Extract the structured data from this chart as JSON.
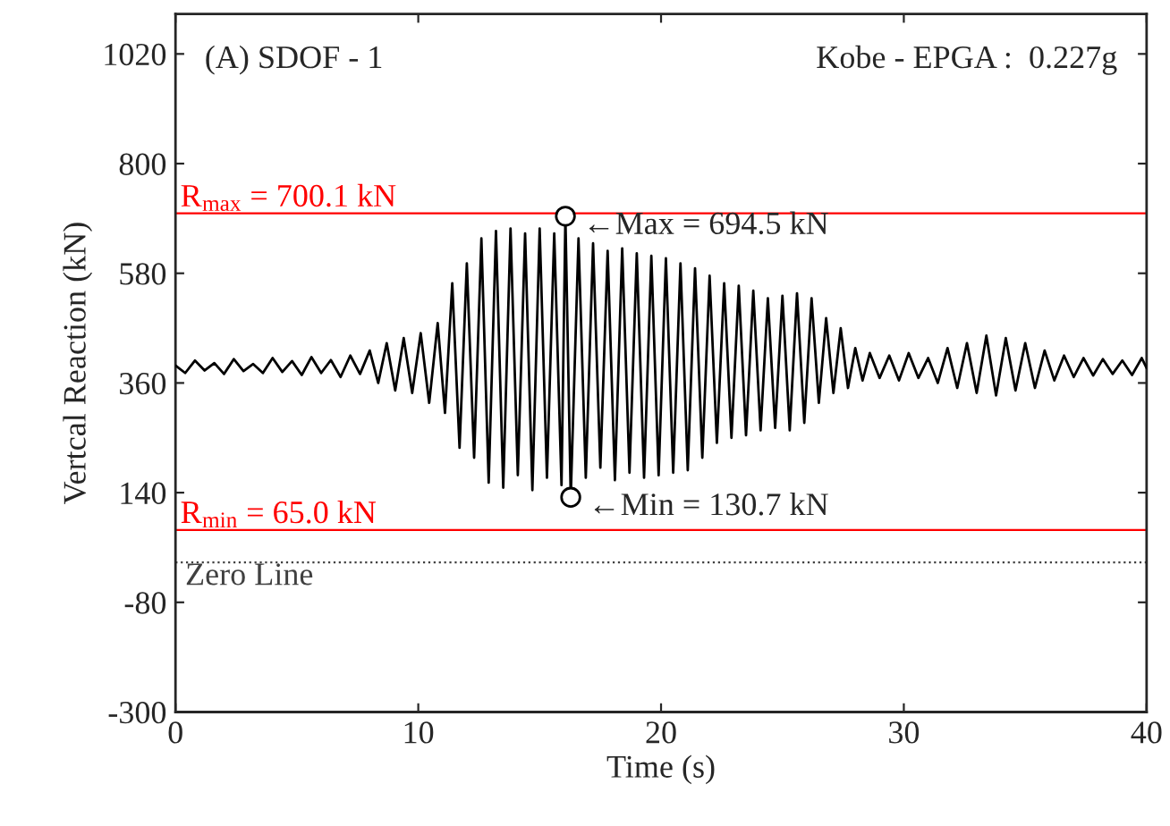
{
  "chart_data": {
    "type": "line",
    "xlabel": "Time (s)",
    "ylabel": "Vertcal Reaction (kN)",
    "xlim": [
      0,
      40
    ],
    "xticks": [
      0,
      10,
      20,
      30,
      40
    ],
    "ylim": [
      -300,
      1100
    ],
    "yticks": [
      -300,
      -80,
      140,
      360,
      580,
      800,
      1020
    ],
    "grid": false,
    "legend": false,
    "series": [
      {
        "color": "#000000",
        "line_style": "solid",
        "x": [
          0,
          0.4,
          0.8,
          1.2,
          1.6,
          2.0,
          2.4,
          2.8,
          3.2,
          3.6,
          4.0,
          4.4,
          4.8,
          5.2,
          5.6,
          6.0,
          6.4,
          6.8,
          7.2,
          7.6,
          8.0,
          8.35,
          8.7,
          9.05,
          9.4,
          9.75,
          10.1,
          10.45,
          10.8,
          11.1,
          11.4,
          11.7,
          12.0,
          12.3,
          12.6,
          12.9,
          13.2,
          13.5,
          13.8,
          14.1,
          14.4,
          14.7,
          15.0,
          15.3,
          15.6,
          15.9,
          16.06,
          16.28,
          16.6,
          16.9,
          17.2,
          17.5,
          17.8,
          18.1,
          18.4,
          18.7,
          19.0,
          19.3,
          19.6,
          19.9,
          20.2,
          20.5,
          20.8,
          21.1,
          21.4,
          21.7,
          22.0,
          22.3,
          22.6,
          22.9,
          23.2,
          23.5,
          23.8,
          24.1,
          24.4,
          24.7,
          25.0,
          25.3,
          25.6,
          25.9,
          26.2,
          26.5,
          26.8,
          27.1,
          27.4,
          27.7,
          28.0,
          28.3,
          28.6,
          29.0,
          29.4,
          29.8,
          30.2,
          30.6,
          31.0,
          31.4,
          31.8,
          32.2,
          32.6,
          33.0,
          33.4,
          33.8,
          34.2,
          34.6,
          35.0,
          35.4,
          35.8,
          36.2,
          36.6,
          37.0,
          37.4,
          37.8,
          38.2,
          38.6,
          39.0,
          39.4,
          39.8,
          40.0
        ],
        "values": [
          395,
          380,
          405,
          385,
          400,
          378,
          408,
          384,
          398,
          380,
          410,
          382,
          404,
          376,
          412,
          380,
          406,
          372,
          415,
          378,
          425,
          360,
          440,
          345,
          450,
          340,
          460,
          320,
          480,
          300,
          560,
          230,
          600,
          210,
          650,
          160,
          665,
          150,
          670,
          175,
          660,
          145,
          670,
          170,
          660,
          155,
          694.5,
          130.7,
          650,
          170,
          640,
          190,
          625,
          165,
          630,
          180,
          620,
          170,
          615,
          175,
          610,
          180,
          600,
          185,
          590,
          210,
          575,
          240,
          560,
          250,
          555,
          255,
          545,
          265,
          530,
          270,
          535,
          265,
          540,
          280,
          530,
          320,
          490,
          340,
          470,
          350,
          430,
          365,
          420,
          370,
          415,
          365,
          420,
          370,
          410,
          360,
          430,
          350,
          440,
          340,
          455,
          335,
          450,
          345,
          440,
          350,
          425,
          365,
          415,
          372,
          410,
          375,
          408,
          378,
          405,
          376,
          410,
          390
        ]
      },
      {
        "type": "scatter",
        "color": "#000000",
        "marker": "circle",
        "x": [
          16.06,
          16.28
        ],
        "values": [
          694.5,
          130.7
        ]
      }
    ],
    "ref_lines": [
      {
        "axis": "y",
        "value": 700.1,
        "label": "R$_{max}$ = 700.1 kN",
        "color": "#ff0000",
        "line_style": "solid"
      },
      {
        "axis": "y",
        "value": 65.0,
        "label": "R$_{min}$ = 65.0 kN",
        "color": "#ff0000",
        "line_style": "solid"
      },
      {
        "axis": "y",
        "value": 0,
        "label": "Zero Line",
        "color": "#404040",
        "line_style": "dotted"
      }
    ],
    "annotations": [
      "(A) SDOF - 1",
      "Kobe - EPGA :  0.227g",
      {
        "text": "←Max = 694.5 kN",
        "x": 16.06,
        "y": 694.5
      },
      {
        "text": "←Min = 130.7 kN",
        "x": 16.28,
        "y": 130.7
      }
    ]
  }
}
